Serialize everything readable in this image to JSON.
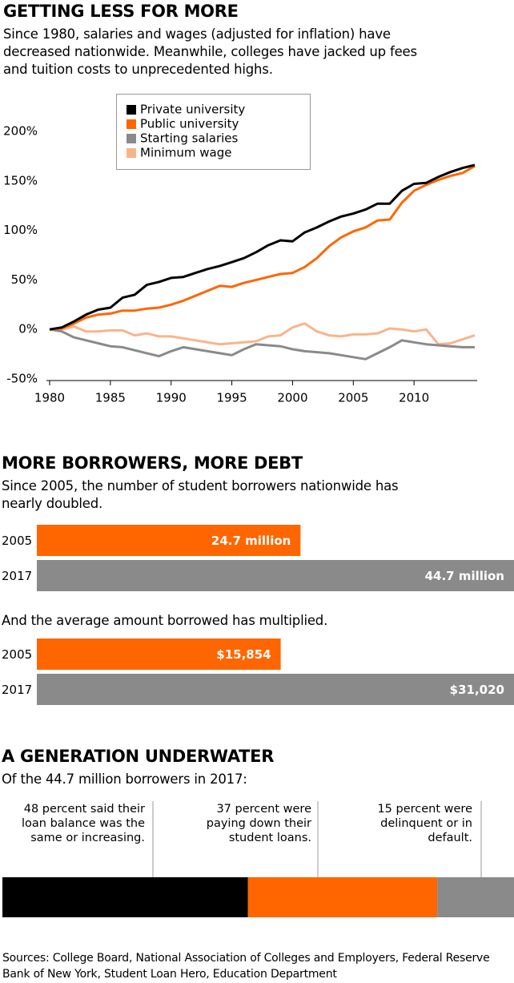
{
  "chart_data": [
    {
      "type": "line",
      "title": "GETTING LESS FOR MORE",
      "subtitle": "Since 1980, salaries and wages (adjusted for inflation) have decreased nationwide. Meanwhile, colleges have jacked up fees and tuition costs to unprecedented highs.",
      "x": [
        1980,
        1981,
        1982,
        1983,
        1984,
        1985,
        1986,
        1987,
        1988,
        1989,
        1990,
        1991,
        1992,
        1993,
        1994,
        1995,
        1996,
        1997,
        1998,
        1999,
        2000,
        2001,
        2002,
        2003,
        2004,
        2005,
        2006,
        2007,
        2008,
        2009,
        2010,
        2011,
        2012,
        2013,
        2014,
        2015
      ],
      "xlim": [
        1980,
        2015
      ],
      "xticks": [
        1980,
        1985,
        1990,
        1995,
        2000,
        2005,
        2010
      ],
      "ylim": [
        -50,
        200
      ],
      "yticks": [
        {
          "value": -50,
          "label": "-50%"
        },
        {
          "value": 0,
          "label": "0%"
        },
        {
          "value": 50,
          "label": "50%"
        },
        {
          "value": 100,
          "label": "100%"
        },
        {
          "value": 150,
          "label": "150%"
        },
        {
          "value": 200,
          "label": "200%"
        }
      ],
      "grid": false,
      "legend": "top-left",
      "series": [
        {
          "name": "Private university",
          "color": "#000000",
          "values": [
            0,
            2,
            8,
            15,
            20,
            22,
            32,
            35,
            45,
            48,
            52,
            53,
            57,
            61,
            64,
            68,
            72,
            78,
            85,
            90,
            89,
            98,
            103,
            109,
            114,
            117,
            121,
            127,
            127,
            140,
            147,
            148,
            154,
            159,
            163,
            166
          ]
        },
        {
          "name": "Public university",
          "color": "#ff6600",
          "values": [
            0,
            1,
            6,
            12,
            15,
            16,
            19,
            19,
            21,
            22,
            25,
            29,
            34,
            39,
            44,
            43,
            47,
            50,
            53,
            56,
            57,
            63,
            72,
            84,
            93,
            99,
            103,
            110,
            111,
            128,
            140,
            146,
            151,
            155,
            158,
            165
          ]
        },
        {
          "name": "Starting salaries",
          "color": "#8a8a8a",
          "values": [
            0,
            -2,
            -8,
            -11,
            -14,
            -17,
            -18,
            -21,
            -24,
            -27,
            -22,
            -18,
            -20,
            -22,
            -24,
            -26,
            -20,
            -15,
            -16,
            -17,
            -20,
            -22,
            -23,
            -24,
            -26,
            -28,
            -30,
            -24,
            -18,
            -11,
            -13,
            -15,
            -16,
            -17,
            -18,
            -18
          ]
        },
        {
          "name": "Minimum wage",
          "color": "#f9b48a",
          "values": [
            0,
            0,
            3,
            -2,
            -2,
            -1,
            -1,
            -6,
            -4,
            -7,
            -7,
            -9,
            -11,
            -13,
            -15,
            -14,
            -13,
            -12,
            -7,
            -6,
            2,
            6,
            -2,
            -6,
            -7,
            -5,
            -5,
            -4,
            1,
            0,
            -2,
            0,
            -15,
            -14,
            -10,
            -6
          ]
        }
      ]
    },
    {
      "type": "bar",
      "title": "MORE BORROWERS, MORE DEBT",
      "subtitle": "Since 2005, the number of student borrowers nationwide has nearly doubled.",
      "categories": [
        "2005",
        "2017"
      ],
      "values": [
        24.7,
        44.7
      ],
      "value_labels": [
        "24.7 million",
        "44.7 million"
      ],
      "colors": [
        "#ff6600",
        "#8a8a8a"
      ]
    },
    {
      "type": "bar",
      "subtitle": "And the average amount borrowed has multiplied.",
      "categories": [
        "2005",
        "2017"
      ],
      "values": [
        15854,
        31020
      ],
      "value_labels": [
        "$15,854",
        "$31,020"
      ],
      "colors": [
        "#ff6600",
        "#8a8a8a"
      ]
    },
    {
      "type": "stacked",
      "title": "A GENERATION UNDERWATER",
      "subtitle": "Of the 44.7 million borrowers in 2017:",
      "segments": [
        {
          "label": "48 percent said their loan balance was the same or increasing.",
          "value": 48,
          "color": "#000000"
        },
        {
          "label": "37 percent were paying down their student loans.",
          "value": 37,
          "color": "#ff6600"
        },
        {
          "label": "15 percent were delinquent or in default.",
          "value": 15,
          "color": "#8a8a8a"
        }
      ]
    }
  ],
  "sources": "Sources: College Board, National Association of Colleges and Employers, Federal Reserve Bank of New York, Student Loan Hero, Education Department"
}
